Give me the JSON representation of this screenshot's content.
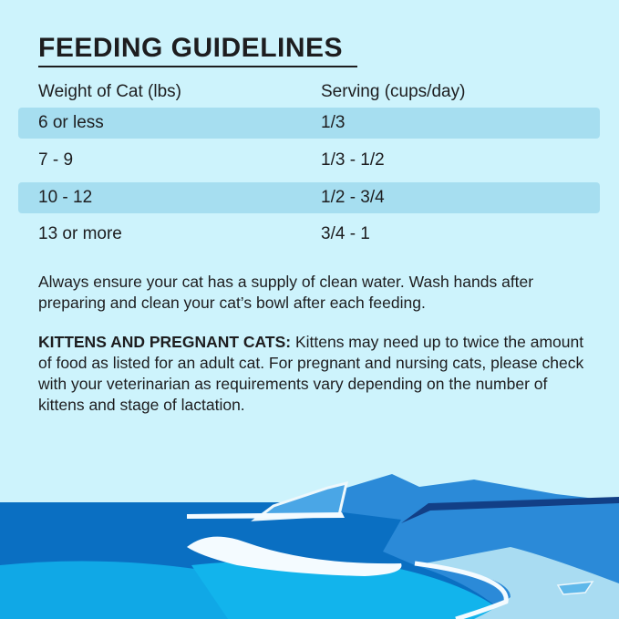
{
  "title": "FEEDING GUIDELINES",
  "table": {
    "headers": [
      "Weight of Cat (lbs)",
      "Serving (cups/day)"
    ],
    "rows": [
      [
        "6 or less",
        "1/3"
      ],
      [
        "7 - 9",
        "1/3 - 1/2"
      ],
      [
        "10 - 12",
        "1/2 - 3/4"
      ],
      [
        "13 or more",
        "3/4 - 1"
      ]
    ]
  },
  "note": "Always ensure your cat has a supply of clean water. Wash hands after preparing and clean your cat’s bowl after each feeding.",
  "kittens": {
    "label": "KITTENS AND PREGNANT CATS:",
    "text": " Kittens may need up to twice the amount of food as listed for an adult cat. For pregnant and nursing cats, please check with your veterinarian as requirements vary depending on the number of kittens and stage of lactation."
  },
  "colors": {
    "background": "#cdf3fc",
    "row_band": "#a6def0",
    "sea": "#0a6fc2",
    "sea_light": "#10b4ea"
  }
}
